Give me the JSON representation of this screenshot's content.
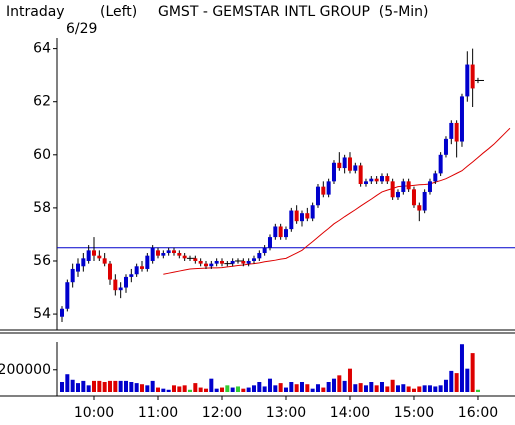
{
  "chart_data": {
    "type": "candlestick",
    "mode": "Intraday",
    "side": "(Left)",
    "title": "GMST - GEMSTAR INTL GROUP  (5-Min)",
    "date": "6/29",
    "categories": [
      null,
      null,
      null,
      null,
      null,
      null,
      "10:00",
      null,
      null,
      null,
      null,
      null,
      null,
      null,
      null,
      null,
      null,
      null,
      "11:00",
      null,
      null,
      null,
      null,
      null,
      null,
      null,
      null,
      null,
      null,
      null,
      "12:00",
      null,
      null,
      null,
      null,
      null,
      null,
      null,
      null,
      null,
      null,
      null,
      "13:00",
      null,
      null,
      null,
      null,
      null,
      null,
      null,
      null,
      null,
      null,
      null,
      "14:00",
      null,
      null,
      null,
      null,
      null,
      null,
      null,
      null,
      null,
      null,
      null,
      "15:00",
      null,
      null,
      null,
      null,
      null,
      null,
      null,
      null,
      null,
      null,
      null,
      "16:00",
      null,
      null,
      null,
      null,
      null,
      null
    ],
    "open": [
      53.9,
      54.2,
      55.2,
      55.6,
      55.8,
      56.0,
      56.4,
      56.2,
      56.1,
      55.9,
      55.3,
      54.9,
      55.0,
      55.4,
      55.5,
      55.8,
      55.7,
      56.0,
      56.4,
      56.2,
      56.3,
      56.4,
      56.3,
      56.2,
      56.1,
      56.1,
      56.0,
      55.9,
      55.8,
      55.9,
      56.0,
      55.9,
      55.9,
      56.0,
      56.0,
      55.9,
      56.0,
      56.1,
      56.3,
      56.5,
      56.9,
      57.3,
      56.9,
      57.2,
      57.9,
      57.5,
      57.8,
      57.6,
      58.1,
      58.8,
      58.5,
      59.0,
      59.7,
      59.5,
      59.9,
      59.4,
      59.6,
      58.9,
      59.0,
      59.1,
      59.0,
      59.2,
      59.0,
      58.4,
      58.6,
      59.0,
      58.7,
      58.1,
      57.9,
      58.6,
      59.0,
      59.3,
      60.0,
      60.6,
      61.2,
      60.5,
      62.2,
      63.4,
      62.8,
      null,
      null,
      null,
      null,
      null,
      null
    ],
    "high": [
      54.3,
      55.3,
      55.9,
      56.1,
      56.3,
      56.6,
      56.9,
      56.4,
      56.3,
      56.0,
      55.5,
      55.2,
      55.5,
      55.7,
      55.9,
      56.0,
      56.3,
      56.6,
      56.5,
      56.4,
      56.5,
      56.5,
      56.4,
      56.3,
      56.2,
      56.2,
      56.1,
      56.0,
      56.0,
      56.1,
      56.1,
      56.0,
      56.1,
      56.1,
      56.1,
      56.1,
      56.2,
      56.4,
      56.6,
      57.0,
      57.4,
      57.4,
      57.3,
      58.0,
      58.1,
      57.9,
      58.0,
      58.2,
      58.9,
      59.0,
      59.1,
      59.8,
      60.1,
      60.0,
      60.1,
      59.7,
      59.7,
      59.1,
      59.2,
      59.2,
      59.3,
      59.3,
      59.1,
      58.7,
      59.1,
      59.1,
      58.8,
      58.2,
      58.7,
      59.1,
      59.4,
      60.1,
      60.7,
      61.3,
      61.3,
      62.3,
      63.9,
      64.0,
      62.9,
      null,
      null,
      null,
      null,
      null,
      null
    ],
    "low": [
      53.7,
      54.1,
      55.0,
      55.4,
      55.6,
      55.9,
      56.0,
      56.0,
      55.8,
      55.1,
      54.7,
      54.6,
      54.8,
      55.2,
      55.4,
      55.6,
      55.6,
      55.9,
      56.1,
      56.1,
      56.2,
      56.2,
      56.1,
      56.0,
      56.0,
      55.9,
      55.8,
      55.7,
      55.7,
      55.8,
      55.8,
      55.8,
      55.8,
      55.9,
      55.8,
      55.8,
      55.9,
      56.0,
      56.2,
      56.4,
      56.8,
      56.8,
      56.8,
      57.1,
      57.4,
      57.3,
      57.5,
      57.5,
      58.0,
      58.4,
      58.4,
      58.9,
      59.4,
      59.3,
      59.3,
      59.3,
      58.8,
      58.8,
      58.9,
      58.9,
      58.9,
      58.9,
      58.3,
      58.3,
      58.5,
      58.6,
      58.0,
      57.5,
      57.8,
      58.5,
      58.9,
      59.2,
      59.9,
      60.4,
      59.9,
      60.3,
      62.0,
      61.8,
      62.7,
      null,
      null,
      null,
      null,
      null,
      null
    ],
    "close": [
      54.2,
      55.2,
      55.7,
      55.9,
      56.1,
      56.4,
      56.2,
      56.1,
      55.9,
      55.3,
      54.9,
      55.0,
      55.4,
      55.5,
      55.8,
      55.7,
      56.2,
      56.5,
      56.2,
      56.3,
      56.4,
      56.3,
      56.2,
      56.1,
      56.1,
      56.0,
      55.9,
      55.8,
      55.9,
      56.0,
      55.9,
      55.9,
      56.0,
      56.0,
      55.9,
      56.0,
      56.1,
      56.3,
      56.5,
      56.9,
      57.3,
      56.9,
      57.2,
      57.9,
      57.5,
      57.8,
      57.6,
      58.1,
      58.8,
      58.5,
      59.0,
      59.7,
      59.5,
      59.9,
      59.4,
      59.6,
      58.9,
      59.0,
      59.1,
      59.0,
      59.2,
      59.0,
      58.4,
      58.6,
      59.0,
      58.7,
      58.1,
      57.9,
      58.6,
      59.0,
      59.3,
      60.0,
      60.6,
      61.2,
      60.5,
      62.2,
      63.4,
      62.5,
      62.8,
      null,
      null,
      null,
      null,
      null,
      null
    ],
    "up_color": "#0000cc",
    "down_color": "#dd0000",
    "flat_color": "#33cc33",
    "ylim": [
      53.4,
      64.4
    ],
    "yticks": [
      54,
      56,
      58,
      60,
      62,
      64
    ],
    "ref_line": 56.5,
    "ref_color": "#0000cc",
    "ma": {
      "color": "#dd0000",
      "values": [
        null,
        null,
        null,
        null,
        null,
        null,
        null,
        null,
        null,
        null,
        null,
        null,
        null,
        null,
        null,
        null,
        null,
        null,
        null,
        55.5,
        55.54,
        55.58,
        55.62,
        55.66,
        55.7,
        55.71,
        55.72,
        55.73,
        55.74,
        55.74,
        55.75,
        55.78,
        55.8,
        55.83,
        55.85,
        55.88,
        55.9,
        55.93,
        55.97,
        56.0,
        56.03,
        56.07,
        56.1,
        56.2,
        56.3,
        56.4,
        56.57,
        56.73,
        56.9,
        57.07,
        57.23,
        57.4,
        57.53,
        57.67,
        57.8,
        57.93,
        58.07,
        58.2,
        58.33,
        58.47,
        58.6,
        58.67,
        58.73,
        58.8,
        58.82,
        58.83,
        58.85,
        58.87,
        58.88,
        58.9,
        58.97,
        59.03,
        59.1,
        59.2,
        59.3,
        59.4,
        59.57,
        59.73,
        59.9,
        60.07,
        60.23,
        60.4,
        60.6,
        60.8,
        61.0
      ]
    },
    "volume": {
      "values": [
        90000,
        160000,
        110000,
        80000,
        100000,
        60000,
        100000,
        100000,
        90000,
        100000,
        100000,
        100000,
        100000,
        90000,
        80000,
        70000,
        60000,
        100000,
        40000,
        30000,
        20000,
        60000,
        50000,
        60000,
        20000,
        80000,
        40000,
        30000,
        120000,
        30000,
        40000,
        60000,
        40000,
        50000,
        30000,
        40000,
        60000,
        90000,
        50000,
        120000,
        60000,
        80000,
        40000,
        90000,
        70000,
        90000,
        70000,
        30000,
        70000,
        40000,
        90000,
        120000,
        150000,
        100000,
        210000,
        70000,
        80000,
        60000,
        90000,
        60000,
        90000,
        50000,
        110000,
        60000,
        70000,
        50000,
        30000,
        50000,
        60000,
        60000,
        50000,
        60000,
        110000,
        190000,
        170000,
        430000,
        210000,
        350000,
        20000,
        null,
        null,
        null,
        null,
        null,
        null
      ],
      "ylim": [
        0,
        450000
      ],
      "yticks": [
        200000
      ]
    }
  }
}
